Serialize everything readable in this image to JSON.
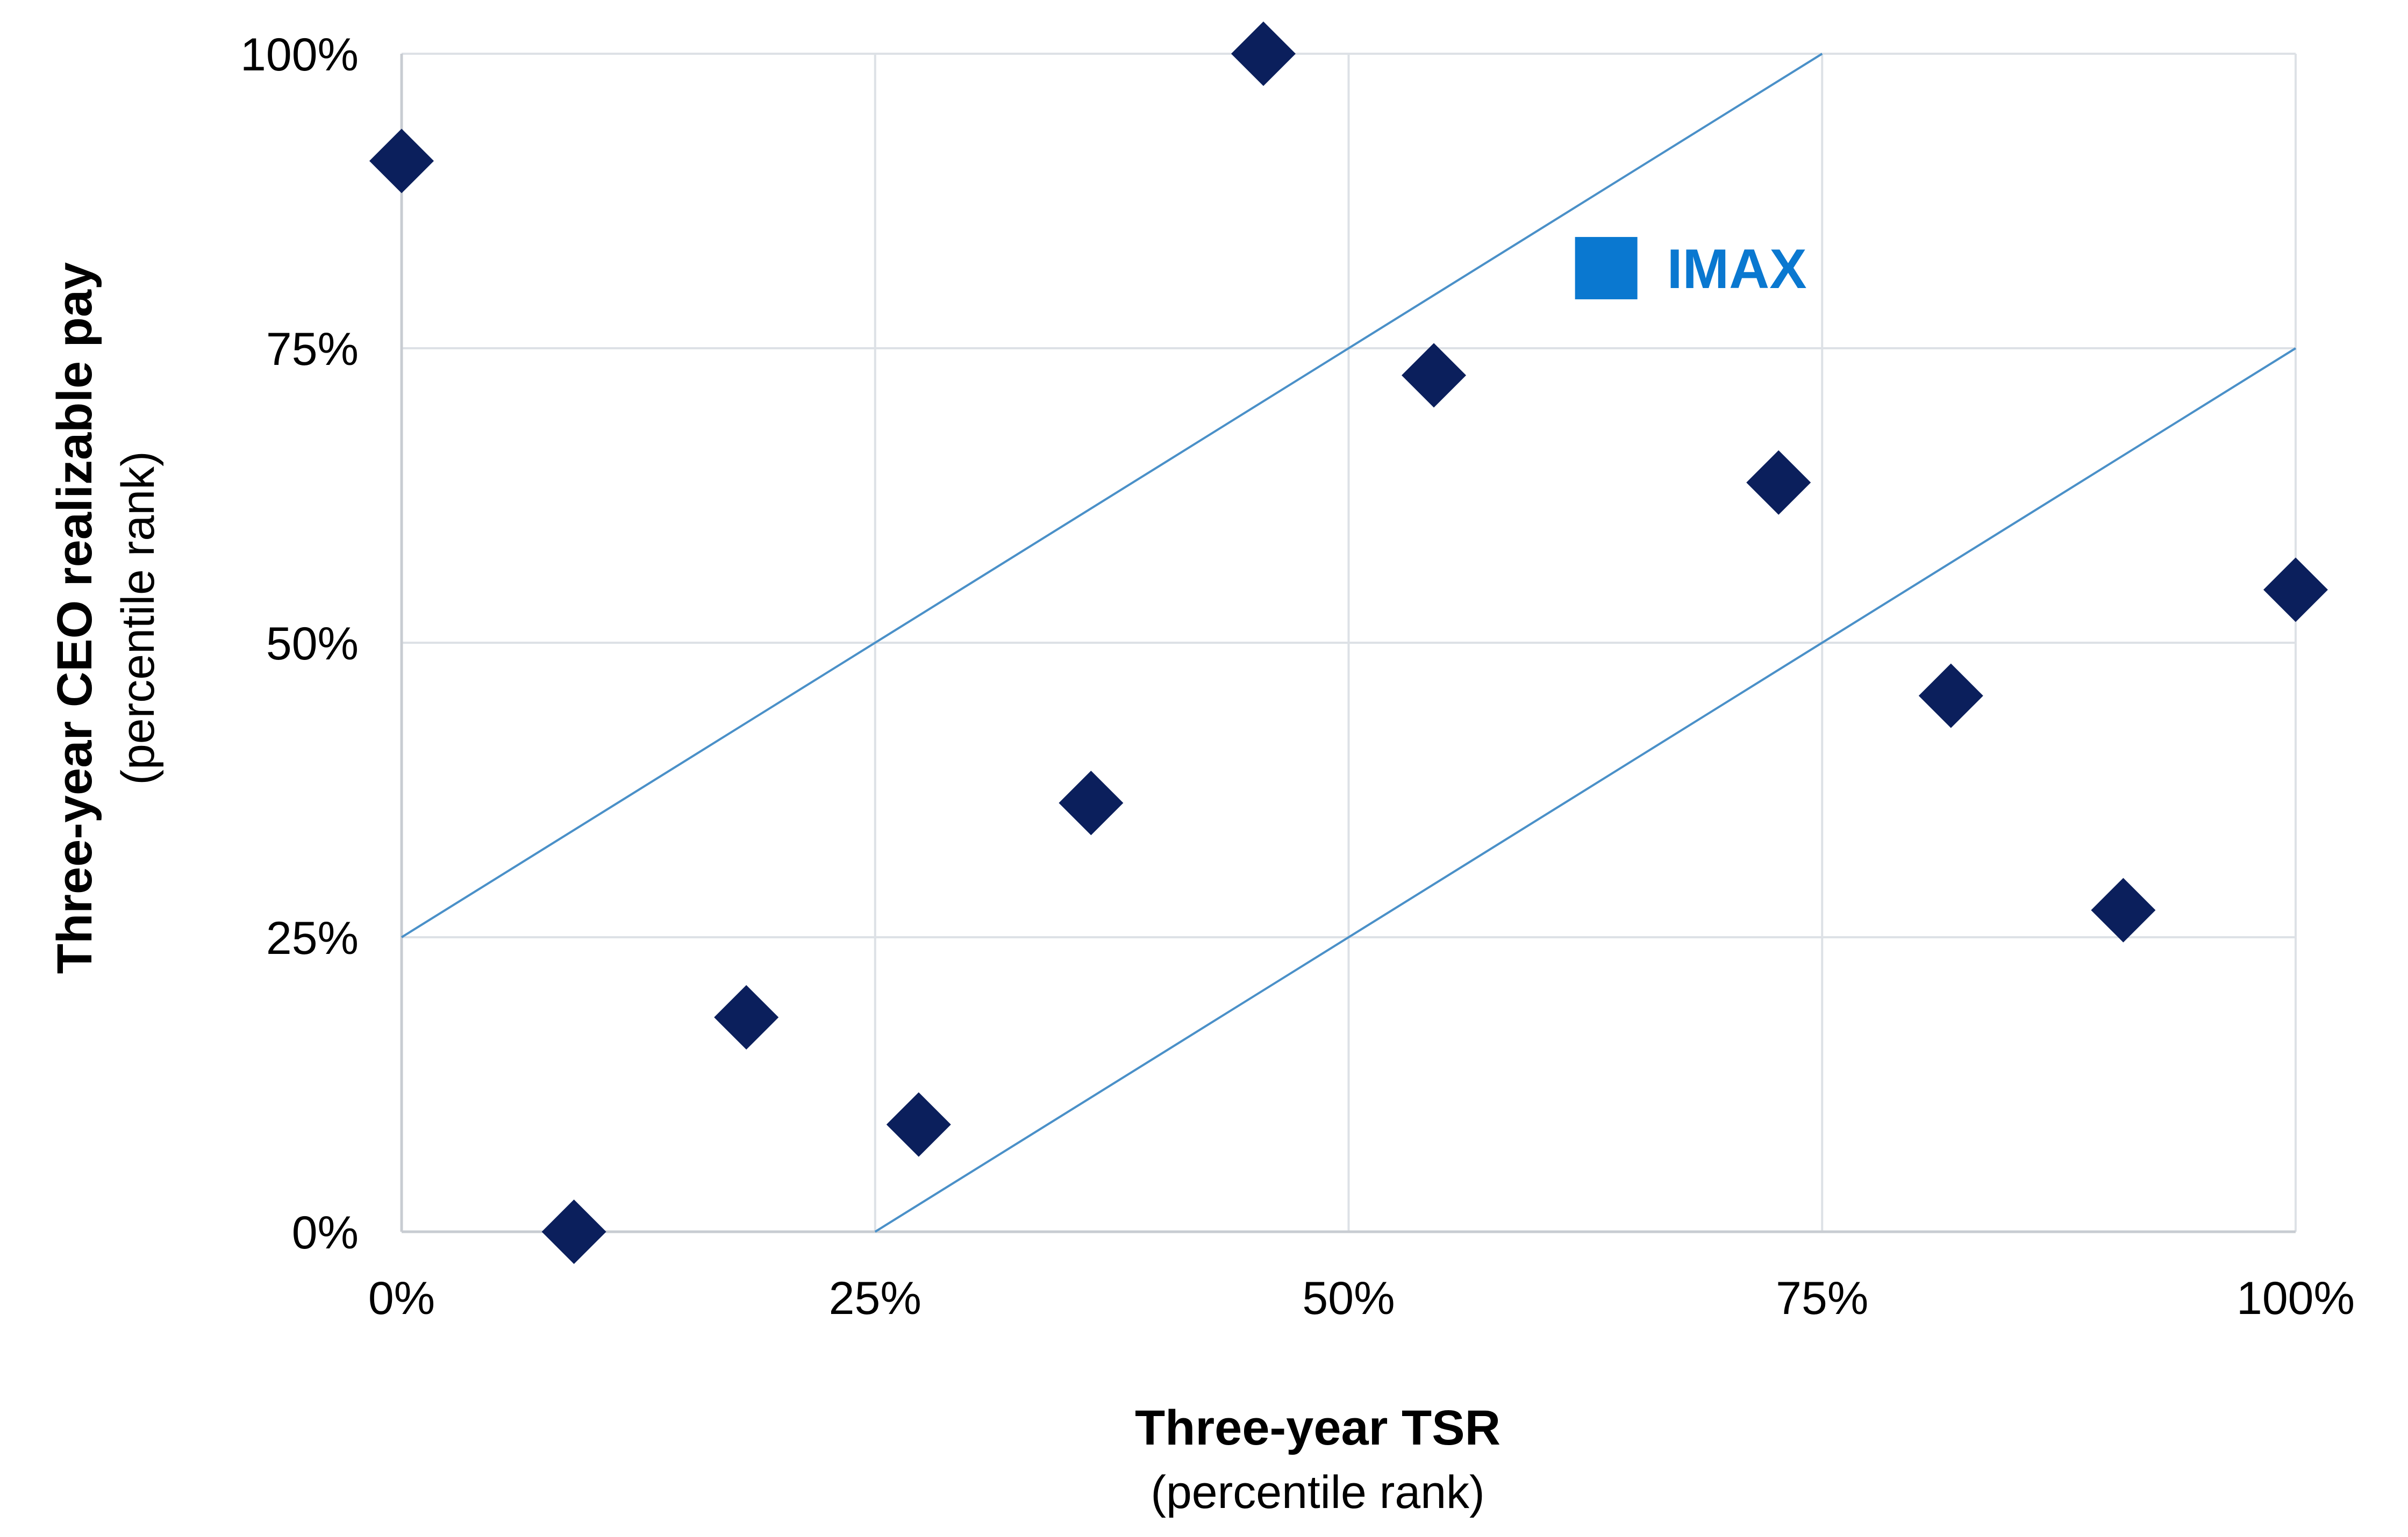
{
  "chart_data": {
    "type": "scatter",
    "xlabel": "Three-year TSR",
    "xlabel_sub": "(percentile rank)",
    "ylabel": "Three-year CEO realizable pay",
    "ylabel_sub": "(percentile rank)",
    "xlim": [
      0,
      100
    ],
    "ylim": [
      0,
      100
    ],
    "x_ticks": [
      "0%",
      "25%",
      "50%",
      "75%",
      "100%"
    ],
    "y_ticks": [
      "0%",
      "25%",
      "50%",
      "75%",
      "100%"
    ],
    "grid": true,
    "peers": {
      "color": "#0b1f5c",
      "marker": "diamond",
      "points": [
        {
          "x": 0,
          "y": 90.9
        },
        {
          "x": 9.1,
          "y": 0
        },
        {
          "x": 18.2,
          "y": 18.2
        },
        {
          "x": 27.3,
          "y": 9.1
        },
        {
          "x": 36.4,
          "y": 36.4
        },
        {
          "x": 45.5,
          "y": 100
        },
        {
          "x": 54.5,
          "y": 72.7
        },
        {
          "x": 72.7,
          "y": 63.6
        },
        {
          "x": 81.8,
          "y": 45.5
        },
        {
          "x": 90.9,
          "y": 27.3
        },
        {
          "x": 100,
          "y": 54.5
        }
      ]
    },
    "company": {
      "label": "IMAX",
      "x": 63.6,
      "y": 81.8,
      "color": "#0a78d0",
      "marker": "square"
    },
    "alignment_lines": {
      "color": "#4a90c8",
      "lines": [
        {
          "x1": 0,
          "y1": 25,
          "x2": 75,
          "y2": 100
        },
        {
          "x1": 25,
          "y1": 0,
          "x2": 100,
          "y2": 75
        }
      ]
    }
  }
}
